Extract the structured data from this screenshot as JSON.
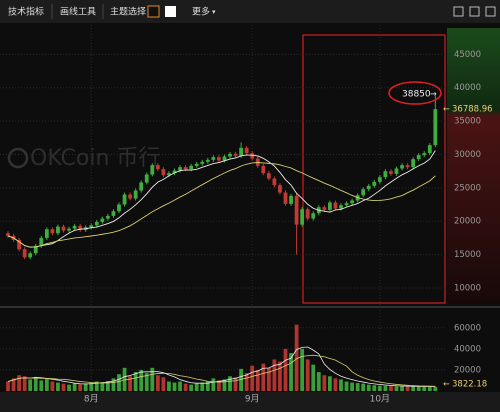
{
  "toolbar": {
    "buttons": [
      "技术指标",
      "画线工具",
      "主题选择"
    ],
    "more": "更多"
  },
  "chart_data": {
    "type": "candlestick",
    "watermark": "OKCoin 币行",
    "annotation": "38850",
    "categories": [
      null,
      null,
      null,
      null,
      null,
      null,
      null,
      null,
      null,
      null,
      null,
      null,
      null,
      null,
      null,
      "8月",
      null,
      null,
      null,
      null,
      null,
      null,
      null,
      null,
      null,
      null,
      null,
      null,
      null,
      null,
      null,
      null,
      null,
      null,
      null,
      null,
      null,
      null,
      null,
      null,
      null,
      null,
      null,
      null,
      "9月",
      null,
      null,
      null,
      null,
      null,
      null,
      null,
      null,
      null,
      null,
      null,
      null,
      null,
      null,
      null,
      null,
      null,
      null,
      null,
      null,
      null,
      null,
      "10月",
      null,
      null,
      null,
      null,
      null,
      null,
      null,
      null,
      null,
      null
    ],
    "open": [
      18200,
      17800,
      17200,
      15800,
      14600,
      15200,
      16300,
      17500,
      18800,
      18200,
      19200,
      18600,
      18900,
      19300,
      18700,
      19100,
      19400,
      19900,
      20400,
      20800,
      21500,
      22500,
      24000,
      23400,
      24600,
      25800,
      27000,
      28400,
      27800,
      26900,
      27200,
      27600,
      28100,
      27800,
      28300,
      28600,
      28900,
      29200,
      29600,
      29100,
      29700,
      30100,
      29800,
      31000,
      30200,
      29400,
      28300,
      27200,
      26400,
      25400,
      24300,
      22600,
      23800,
      19500,
      21800,
      20400,
      21200,
      22100,
      21700,
      22800,
      21900,
      22400,
      22700,
      23100,
      23900,
      24800,
      25300,
      25900,
      26600,
      27500,
      27100,
      27900,
      28400,
      28100,
      29300,
      29900,
      30200,
      31400
    ],
    "high": [
      18500,
      18100,
      17500,
      16100,
      15500,
      16600,
      17800,
      19100,
      19100,
      19500,
      19500,
      19200,
      19600,
      19600,
      19400,
      19700,
      20200,
      20700,
      21100,
      21800,
      22800,
      24300,
      24300,
      24900,
      26100,
      27300,
      28700,
      28700,
      28100,
      27500,
      27900,
      28400,
      28400,
      28600,
      28900,
      29200,
      29500,
      29900,
      29900,
      30000,
      30400,
      30400,
      31800,
      31300,
      30500,
      29700,
      28600,
      27500,
      26700,
      25700,
      24600,
      24100,
      24100,
      22100,
      22100,
      21500,
      22400,
      22400,
      23100,
      23100,
      22700,
      23000,
      23400,
      24200,
      25100,
      25600,
      26200,
      26900,
      27800,
      27800,
      28200,
      28700,
      28700,
      29600,
      30200,
      30500,
      31700,
      38850
    ],
    "low": [
      17500,
      16900,
      15500,
      14300,
      14300,
      14900,
      16000,
      17200,
      17900,
      17900,
      18300,
      18300,
      18600,
      18400,
      18400,
      18800,
      19100,
      19600,
      20100,
      20500,
      21200,
      22200,
      23100,
      23100,
      24300,
      25500,
      26700,
      27500,
      26600,
      26600,
      26900,
      27300,
      27500,
      27500,
      28000,
      28300,
      28600,
      28900,
      28800,
      28800,
      29400,
      29500,
      29500,
      29900,
      29100,
      28000,
      26900,
      26100,
      25100,
      24000,
      22300,
      22300,
      15000,
      19200,
      20100,
      20100,
      20900,
      21400,
      21400,
      21600,
      21600,
      22100,
      22400,
      22800,
      23600,
      24500,
      25000,
      25600,
      26300,
      26800,
      26800,
      27600,
      27800,
      27800,
      29000,
      29600,
      29900,
      31100
    ],
    "close": [
      17800,
      17200,
      15800,
      14600,
      15200,
      16300,
      17500,
      18800,
      18200,
      19200,
      18600,
      18900,
      19300,
      18700,
      19100,
      19400,
      19900,
      20400,
      20800,
      21500,
      22500,
      24000,
      23400,
      24600,
      25800,
      27000,
      28400,
      27800,
      26900,
      27200,
      27600,
      28100,
      27800,
      28300,
      28600,
      28900,
      29200,
      29600,
      29100,
      29700,
      30100,
      29800,
      31000,
      30200,
      29400,
      28300,
      27200,
      26400,
      25400,
      24300,
      22600,
      23800,
      19500,
      21800,
      20400,
      21200,
      22100,
      21700,
      22800,
      21900,
      22400,
      22700,
      23100,
      23900,
      24800,
      25300,
      25900,
      26600,
      27500,
      27100,
      27900,
      28400,
      28100,
      29300,
      29900,
      30200,
      31400,
      36788.96
    ],
    "volume": [
      9000,
      12000,
      15000,
      14000,
      11000,
      13000,
      10000,
      12000,
      9000,
      8000,
      7000,
      6000,
      7000,
      6500,
      7000,
      8000,
      9000,
      8500,
      9500,
      12000,
      16000,
      22000,
      14000,
      18000,
      20000,
      17000,
      22000,
      15000,
      13000,
      9000,
      8000,
      9000,
      7000,
      6000,
      7000,
      8000,
      9000,
      12000,
      10000,
      11000,
      14000,
      13000,
      21000,
      17000,
      24000,
      20000,
      26000,
      22000,
      30000,
      28000,
      40000,
      36000,
      63000,
      40000,
      30000,
      25000,
      18000,
      15000,
      14000,
      12000,
      11000,
      9000,
      8000,
      7500,
      7000,
      6000,
      5500,
      5000,
      5000,
      4800,
      4500,
      4600,
      4200,
      4500,
      4300,
      4600,
      4100,
      3822.18
    ],
    "ylim": [
      7450,
      49400
    ],
    "yticks": [
      10000,
      15000,
      20000,
      25000,
      30000,
      35000,
      40000,
      45000
    ],
    "volume_ylim": [
      0,
      75000
    ],
    "volume_yticks": [
      20000,
      40000,
      60000
    ],
    "up_color": "#3fae3f",
    "down_color": "#c23a35",
    "grid": true
  }
}
